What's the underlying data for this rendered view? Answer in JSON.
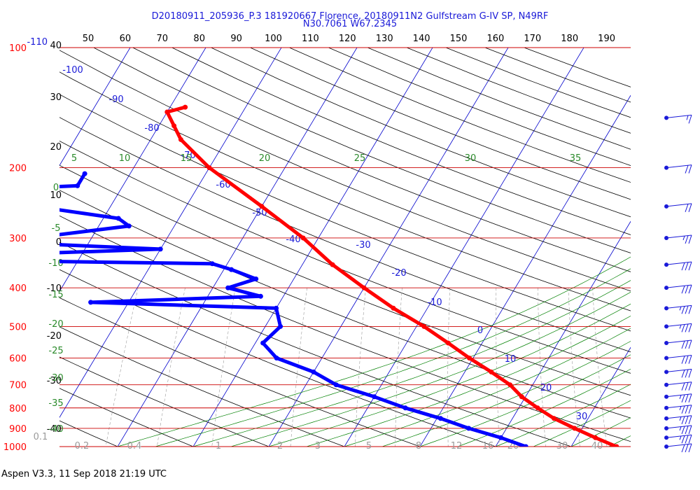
{
  "header": {
    "line1": "D20180911_205936_P.3 181920667 Florence, 20180911N2 Gulfstream G-IV SP, N49RF",
    "line2": "N30.7061 W67.2345"
  },
  "footer": "Aspen V3.3, 11 Sep 2018  21:19 UTC",
  "colors": {
    "temperature": "#ff0000",
    "dewpoint": "#0000ff",
    "isobars": "#cc0000",
    "isotherms": "#0000cc",
    "dry_adiabats": "#000000",
    "moist_adiabats": "#008000",
    "mixing_ratio": "#9a9a9a"
  },
  "chart_data": {
    "type": "skew-t",
    "pressure_levels": [
      100,
      200,
      300,
      400,
      500,
      600,
      700,
      800,
      900,
      1000
    ],
    "pressure_labels": [
      "100",
      "200",
      "300",
      "400",
      "500",
      "600",
      "700",
      "800",
      "900",
      "1000"
    ],
    "top_temperature_label": "-110",
    "top_axis_labels": [
      "50",
      "60",
      "70",
      "80",
      "90",
      "100",
      "110",
      "120",
      "130",
      "140",
      "150",
      "160",
      "170",
      "180",
      "190"
    ],
    "left_axis_labels": [
      "40",
      "30",
      "20",
      "10",
      "0",
      "-10",
      "-20",
      "-30",
      "-40"
    ],
    "isotherm_labels": [
      "-100",
      "-90",
      "-80",
      "-70",
      "-60",
      "-50",
      "-40",
      "-30",
      "-20",
      "-10",
      "0",
      "10",
      "20",
      "30"
    ],
    "moist_adiabat_labels": [
      "5",
      "10",
      "15",
      "20",
      "25",
      "30",
      "35"
    ],
    "moist_adiabat_left_labels": [
      "0",
      "-5",
      "-10",
      "-15",
      "-20",
      "-25",
      "-30",
      "-35",
      "-40"
    ],
    "mixing_ratio_labels": [
      "0.1",
      "0.2",
      "0.4",
      "1",
      "2",
      "3",
      "5",
      "8",
      "12",
      "16",
      "20",
      "30",
      "40"
    ],
    "temperature_profile": [
      {
        "p": 141,
        "t": -58
      },
      {
        "p": 145,
        "t": -60
      },
      {
        "p": 157,
        "t": -58
      },
      {
        "p": 170,
        "t": -56
      },
      {
        "p": 200,
        "t": -50
      },
      {
        "p": 250,
        "t": -40
      },
      {
        "p": 300,
        "t": -32
      },
      {
        "p": 350,
        "t": -26
      },
      {
        "p": 400,
        "t": -20
      },
      {
        "p": 450,
        "t": -14.5
      },
      {
        "p": 500,
        "t": -9
      },
      {
        "p": 550,
        "t": -4.5
      },
      {
        "p": 600,
        "t": -0.5
      },
      {
        "p": 650,
        "t": 3.5
      },
      {
        "p": 700,
        "t": 7
      },
      {
        "p": 750,
        "t": 9.5
      },
      {
        "p": 800,
        "t": 12.5
      },
      {
        "p": 850,
        "t": 15.5
      },
      {
        "p": 900,
        "t": 19
      },
      {
        "p": 950,
        "t": 22.5
      },
      {
        "p": 1000,
        "t": 26
      }
    ],
    "dewpoint_profile": [
      {
        "p": 207,
        "t": -66
      },
      {
        "p": 222,
        "t": -66
      },
      {
        "p": 230,
        "t": -85
      },
      {
        "p": 250,
        "t": -70
      },
      {
        "p": 268,
        "t": -58
      },
      {
        "p": 280,
        "t": -56
      },
      {
        "p": 295,
        "t": -65
      },
      {
        "p": 310,
        "t": -67
      },
      {
        "p": 320,
        "t": -50
      },
      {
        "p": 330,
        "t": -70
      },
      {
        "p": 340,
        "t": -80
      },
      {
        "p": 348,
        "t": -42
      },
      {
        "p": 360,
        "t": -39
      },
      {
        "p": 380,
        "t": -35
      },
      {
        "p": 400,
        "t": -38
      },
      {
        "p": 420,
        "t": -33
      },
      {
        "p": 435,
        "t": -55
      },
      {
        "p": 450,
        "t": -30
      },
      {
        "p": 500,
        "t": -28
      },
      {
        "p": 550,
        "t": -29
      },
      {
        "p": 600,
        "t": -26
      },
      {
        "p": 650,
        "t": -20
      },
      {
        "p": 700,
        "t": -16
      },
      {
        "p": 750,
        "t": -10
      },
      {
        "p": 800,
        "t": -5
      },
      {
        "p": 850,
        "t": 0.5
      },
      {
        "p": 900,
        "t": 5
      },
      {
        "p": 950,
        "t": 10
      },
      {
        "p": 1000,
        "t": 14
      }
    ],
    "wind_barbs": [
      {
        "p": 150,
        "dir": 210,
        "kt": 15
      },
      {
        "p": 200,
        "dir": 190,
        "kt": 20
      },
      {
        "p": 250,
        "dir": 180,
        "kt": 20
      },
      {
        "p": 300,
        "dir": 180,
        "kt": 25
      },
      {
        "p": 350,
        "dir": 180,
        "kt": 30
      },
      {
        "p": 400,
        "dir": 180,
        "kt": 30
      },
      {
        "p": 450,
        "dir": 180,
        "kt": 35
      },
      {
        "p": 500,
        "dir": 180,
        "kt": 35
      },
      {
        "p": 550,
        "dir": 180,
        "kt": 30
      },
      {
        "p": 600,
        "dir": 180,
        "kt": 30
      },
      {
        "p": 650,
        "dir": 180,
        "kt": 30
      },
      {
        "p": 700,
        "dir": 180,
        "kt": 30
      },
      {
        "p": 750,
        "dir": 180,
        "kt": 35
      },
      {
        "p": 800,
        "dir": 180,
        "kt": 35
      },
      {
        "p": 850,
        "dir": 180,
        "kt": 35
      },
      {
        "p": 900,
        "dir": 180,
        "kt": 35
      },
      {
        "p": 950,
        "dir": 180,
        "kt": 35
      },
      {
        "p": 1000,
        "dir": 180,
        "kt": 30
      }
    ]
  }
}
